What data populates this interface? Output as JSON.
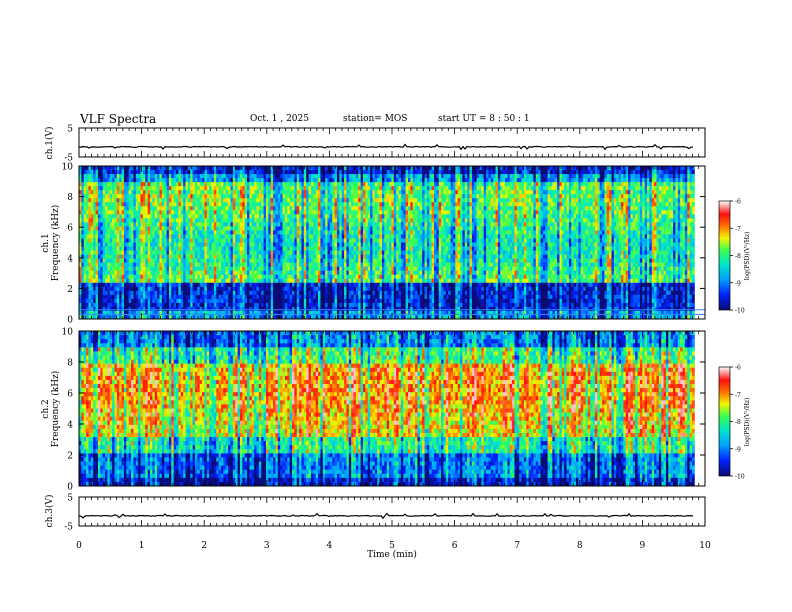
{
  "header": {
    "title": "VLF Spectra",
    "date": "Oct. 1 , 2025",
    "station": "station= MOS",
    "start_ut": "start UT = 8 : 50 : 1"
  },
  "colors": {
    "colormap": [
      "#0b0b73",
      "#0020ff",
      "#00a0ff",
      "#00e6c8",
      "#3cff50",
      "#f5f500",
      "#ff6600",
      "#ff1010",
      "#ffffff"
    ],
    "trace": "#000000",
    "hline": "#2f8cff"
  },
  "chart_data": [
    {
      "type": "line",
      "name": "ch1-waveform",
      "ylabel": "ch.1(V)",
      "ylim": [
        -5,
        5
      ],
      "yticks": [
        5,
        -5
      ],
      "baseline": -1.5,
      "xlim": [
        0,
        10
      ]
    },
    {
      "type": "heatmap",
      "name": "ch1-spectrogram",
      "ylabel_lines": [
        "ch.1",
        "Frequency (kHz)"
      ],
      "ylim": [
        0,
        10
      ],
      "yticks": [
        0,
        2,
        4,
        6,
        8,
        10
      ],
      "xlim": [
        0,
        10
      ],
      "data_xmax": 9.83,
      "colorbar": {
        "label": "log(PSD)(V²/Hz)",
        "range": [
          -10,
          -6
        ],
        "ticks": [
          -6,
          -7,
          -8,
          -9,
          -10
        ]
      },
      "horizontal_lines_khz": [
        0.3,
        0.6
      ]
    },
    {
      "type": "heatmap",
      "name": "ch2-spectrogram",
      "ylabel_lines": [
        "ch.2",
        "Frequency (kHz)"
      ],
      "ylim": [
        0,
        10
      ],
      "yticks": [
        0,
        2,
        4,
        6,
        8,
        10
      ],
      "xlim": [
        0,
        10
      ],
      "data_xmax": 9.83,
      "colorbar": {
        "label": "log(PSD)(V²/Hz)",
        "range": [
          -10,
          -6
        ],
        "ticks": [
          -6,
          -7,
          -8,
          -9,
          -10
        ]
      }
    },
    {
      "type": "line",
      "name": "ch3-waveform",
      "ylabel": "ch.3(V)",
      "ylim": [
        -5,
        5
      ],
      "yticks": [
        5,
        -5
      ],
      "baseline": -1.5,
      "xlim": [
        0,
        10
      ],
      "xlabel": "Time (min)",
      "xticks": [
        0,
        1,
        2,
        3,
        4,
        5,
        6,
        7,
        8,
        9,
        10
      ]
    }
  ]
}
